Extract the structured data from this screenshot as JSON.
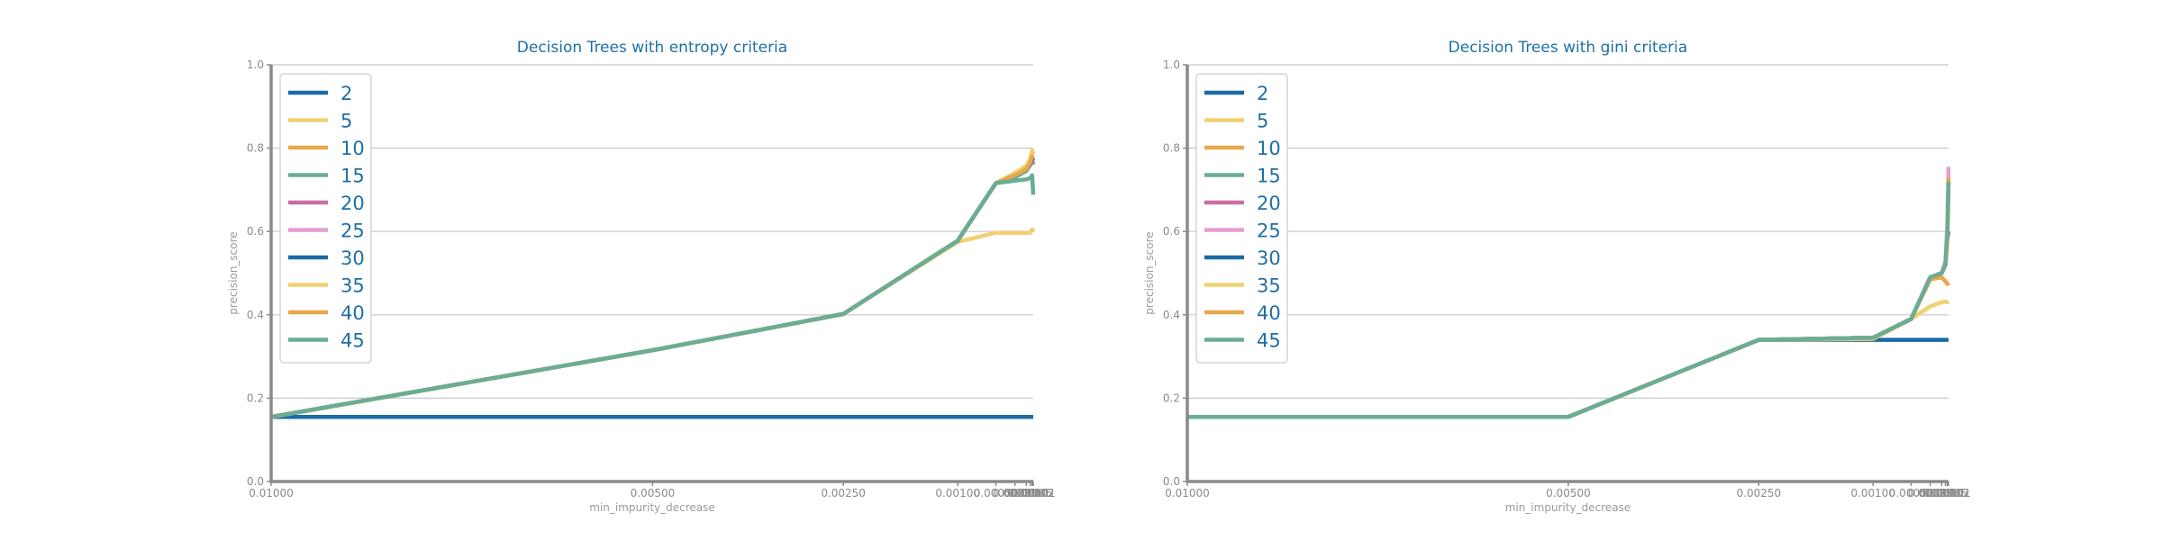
{
  "chart_data": [
    {
      "type": "line",
      "title": "Decision Trees with entropy criteria",
      "xlabel": "min_impurity_decrease",
      "ylabel": "precision_score",
      "x": [
        0.01,
        0.005,
        0.0025,
        0.001,
        0.0005,
        0.00025,
        0.0001,
        5e-05,
        2.5e-05,
        1e-05
      ],
      "x_tick_labels": [
        "0.01000",
        "0.00500",
        "0.00250",
        "0.00100",
        "0.00050",
        "0.00025",
        "0.00010",
        "0.00005",
        "0.00002",
        "0.00001"
      ],
      "ylim": [
        0,
        1
      ],
      "y_ticks": [
        0,
        0.2,
        0.4,
        0.6,
        0.8,
        1.0
      ],
      "y_tick_labels": [
        "0.0",
        "0.2",
        "0.4",
        "0.6",
        "0.8",
        "1.0"
      ],
      "grid": "horizontal",
      "legend_position": "top-left",
      "series": [
        {
          "name": "2",
          "color": "#1a6aa5",
          "values": [
            0.155,
            0.155,
            0.155,
            0.155,
            0.155,
            0.155,
            0.155,
            0.155,
            0.155,
            0.155
          ]
        },
        {
          "name": "5",
          "color": "#f0d070",
          "values": [
            0.155,
            0.315,
            0.402,
            0.575,
            0.597,
            0.597,
            0.597,
            0.597,
            0.605,
            0.598
          ]
        },
        {
          "name": "10",
          "color": "#e8a84a",
          "values": [
            0.155,
            0.315,
            0.402,
            0.578,
            0.716,
            0.738,
            0.752,
            0.77,
            0.79,
            0.785
          ]
        },
        {
          "name": "15",
          "color": "#6aad94",
          "values": [
            0.155,
            0.315,
            0.402,
            0.578,
            0.716,
            0.73,
            0.745,
            0.76,
            0.77,
            0.76
          ]
        },
        {
          "name": "20",
          "color": "#c96ea6",
          "values": [
            0.155,
            0.315,
            0.402,
            0.578,
            0.716,
            0.735,
            0.75,
            0.76,
            0.77,
            0.765
          ]
        },
        {
          "name": "25",
          "color": "#e39ed0",
          "values": [
            0.155,
            0.315,
            0.402,
            0.578,
            0.716,
            0.735,
            0.75,
            0.762,
            0.775,
            0.77
          ]
        },
        {
          "name": "30",
          "color": "#1a6aa5",
          "values": [
            0.155,
            0.315,
            0.402,
            0.578,
            0.716,
            0.735,
            0.75,
            0.762,
            0.775,
            0.77
          ]
        },
        {
          "name": "35",
          "color": "#f0d070",
          "values": [
            0.155,
            0.315,
            0.402,
            0.578,
            0.716,
            0.74,
            0.758,
            0.775,
            0.795,
            0.79
          ]
        },
        {
          "name": "40",
          "color": "#e8a84a",
          "values": [
            0.155,
            0.315,
            0.402,
            0.578,
            0.716,
            0.735,
            0.75,
            0.765,
            0.78,
            0.775
          ]
        },
        {
          "name": "45",
          "color": "#6aad94",
          "values": [
            0.155,
            0.315,
            0.402,
            0.578,
            0.716,
            0.722,
            0.725,
            0.728,
            0.735,
            0.688
          ]
        }
      ]
    },
    {
      "type": "line",
      "title": "Decision Trees with gini criteria",
      "xlabel": "min_impurity_decrease",
      "ylabel": "precision_score",
      "x": [
        0.01,
        0.005,
        0.0025,
        0.001,
        0.0005,
        0.00025,
        0.0001,
        5e-05,
        2.5e-05,
        1e-05
      ],
      "x_tick_labels": [
        "0.01000",
        "0.00500",
        "0.00250",
        "0.00100",
        "0.00050",
        "0.00025",
        "0.00010",
        "0.00005",
        "0.00002",
        "0.00001"
      ],
      "ylim": [
        0,
        1
      ],
      "y_ticks": [
        0,
        0.2,
        0.4,
        0.6,
        0.8,
        1.0
      ],
      "y_tick_labels": [
        "0.0",
        "0.2",
        "0.4",
        "0.6",
        "0.8",
        "1.0"
      ],
      "grid": "horizontal",
      "legend_position": "top-left",
      "series": [
        {
          "name": "2",
          "color": "#1a6aa5",
          "values": [
            0.155,
            0.155,
            0.34,
            0.34,
            0.34,
            0.34,
            0.34,
            0.34,
            0.34,
            0.34
          ]
        },
        {
          "name": "5",
          "color": "#f0d070",
          "values": [
            0.155,
            0.155,
            0.34,
            0.342,
            0.39,
            0.42,
            0.43,
            0.432,
            0.43,
            0.432
          ]
        },
        {
          "name": "10",
          "color": "#e8a84a",
          "values": [
            0.155,
            0.155,
            0.34,
            0.345,
            0.39,
            0.485,
            0.49,
            0.48,
            0.475,
            0.47
          ]
        },
        {
          "name": "15",
          "color": "#6aad94",
          "values": [
            0.155,
            0.155,
            0.34,
            0.345,
            0.39,
            0.49,
            0.5,
            0.52,
            0.58,
            0.7
          ]
        },
        {
          "name": "20",
          "color": "#c96ea6",
          "values": [
            0.155,
            0.155,
            0.34,
            0.345,
            0.39,
            0.49,
            0.5,
            0.52,
            0.6,
            0.72
          ]
        },
        {
          "name": "25",
          "color": "#e39ed0",
          "values": [
            0.155,
            0.155,
            0.34,
            0.345,
            0.39,
            0.49,
            0.5,
            0.53,
            0.62,
            0.755
          ]
        },
        {
          "name": "30",
          "color": "#1a6aa5",
          "values": [
            0.155,
            0.155,
            0.34,
            0.345,
            0.39,
            0.49,
            0.5,
            0.52,
            0.58,
            0.6
          ]
        },
        {
          "name": "35",
          "color": "#f0d070",
          "values": [
            0.155,
            0.155,
            0.34,
            0.345,
            0.39,
            0.49,
            0.5,
            0.52,
            0.57,
            0.68
          ]
        },
        {
          "name": "40",
          "color": "#e8a84a",
          "values": [
            0.155,
            0.155,
            0.34,
            0.345,
            0.39,
            0.49,
            0.5,
            0.52,
            0.59,
            0.73
          ]
        },
        {
          "name": "45",
          "color": "#6aad94",
          "values": [
            0.155,
            0.155,
            0.34,
            0.345,
            0.39,
            0.49,
            0.5,
            0.52,
            0.6,
            0.72
          ]
        }
      ]
    }
  ]
}
